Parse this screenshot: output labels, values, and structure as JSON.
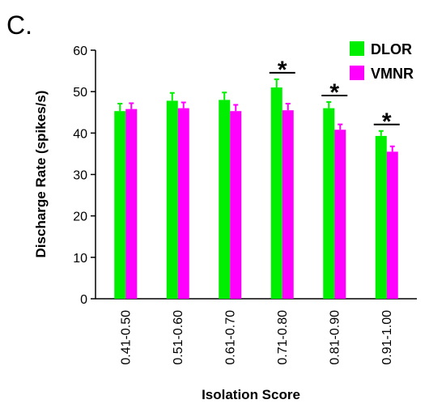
{
  "chart_data": {
    "type": "bar",
    "panel_label": "C.",
    "x_label": "Isolation Score",
    "y_label": "Discharge Rate (spikes/s)",
    "categories": [
      "0.41-0.50",
      "0.51-0.60",
      "0.61-0.70",
      "0.71-0.80",
      "0.81-0.90",
      "0.91-1.00"
    ],
    "series": [
      {
        "name": "DLOR",
        "color": "#00ee00",
        "values": [
          45.3,
          47.8,
          48.0,
          51.0,
          46.0,
          39.3
        ],
        "errors": [
          1.8,
          1.9,
          1.8,
          2.0,
          1.5,
          1.2
        ]
      },
      {
        "name": "VMNR",
        "color": "#ff00ff",
        "values": [
          45.8,
          46.0,
          45.3,
          45.5,
          40.8,
          35.5
        ],
        "errors": [
          1.4,
          1.4,
          1.5,
          1.6,
          1.3,
          1.3
        ]
      }
    ],
    "significance_label": "*",
    "significant": [
      false,
      false,
      false,
      true,
      true,
      true
    ],
    "ylim": [
      0,
      60
    ],
    "yticks": [
      0,
      10,
      20,
      30,
      40,
      50,
      60
    ],
    "legend": "top-right",
    "grid": false
  }
}
